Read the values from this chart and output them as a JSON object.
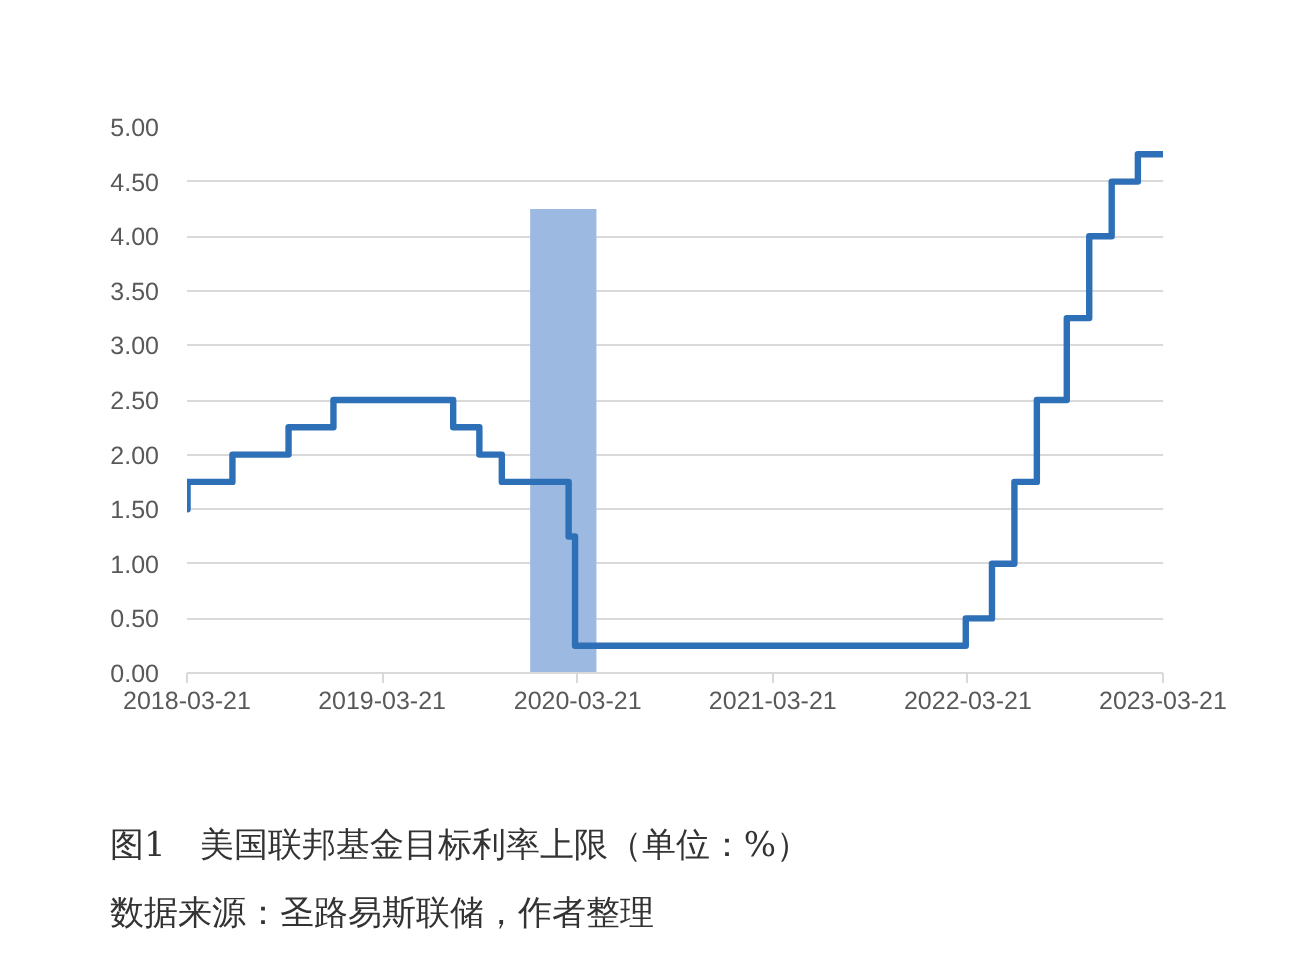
{
  "chart_data": {
    "type": "step",
    "title": "图1　美国联邦基金目标利率上限（单位：%）",
    "annotations": [
      "数据来源：圣路易斯联储，作者整理"
    ],
    "series": [
      {
        "type": "area",
        "color": "#9cb9e2",
        "x": [
          "2019-12-23",
          "2020-04-25"
        ],
        "values": [
          4.25,
          4.25
        ]
      },
      {
        "color": "#2e70b7",
        "x": [
          "2018-03-21",
          "2018-03-22",
          "2018-06-14",
          "2018-09-27",
          "2018-12-20",
          "2019-08-01",
          "2019-09-19",
          "2019-10-31",
          "2020-03-04",
          "2020-03-16",
          "2022-03-17",
          "2022-05-05",
          "2022-06-16",
          "2022-07-28",
          "2022-09-22",
          "2022-11-03",
          "2022-12-15",
          "2023-02-02",
          "2023-03-21"
        ],
        "values": [
          1.5,
          1.75,
          2.0,
          2.25,
          2.5,
          2.25,
          2.0,
          1.75,
          1.25,
          0.25,
          0.5,
          1.0,
          1.75,
          2.5,
          3.25,
          4.0,
          4.5,
          4.75,
          4.75
        ]
      }
    ],
    "xlim": [
      "2018-03-21",
      "2023-03-21"
    ],
    "xticks": [
      "2018-03-21",
      "2019-03-21",
      "2020-03-21",
      "2021-03-21",
      "2022-03-21",
      "2023-03-21"
    ],
    "ylim": [
      0,
      5
    ],
    "yticks": [
      {
        "value": 0,
        "label": "0.00"
      },
      {
        "value": 0.5,
        "label": "0.50"
      },
      {
        "value": 1,
        "label": "1.00"
      },
      {
        "value": 1.5,
        "label": "1.50"
      },
      {
        "value": 2,
        "label": "2.00"
      },
      {
        "value": 2.5,
        "label": "2.50"
      },
      {
        "value": 3,
        "label": "3.00"
      },
      {
        "value": 3.5,
        "label": "3.50"
      },
      {
        "value": 4,
        "label": "4.00"
      },
      {
        "value": 4.5,
        "label": "4.50"
      },
      {
        "value": 5,
        "label": "5.00"
      }
    ],
    "grid": "y"
  }
}
